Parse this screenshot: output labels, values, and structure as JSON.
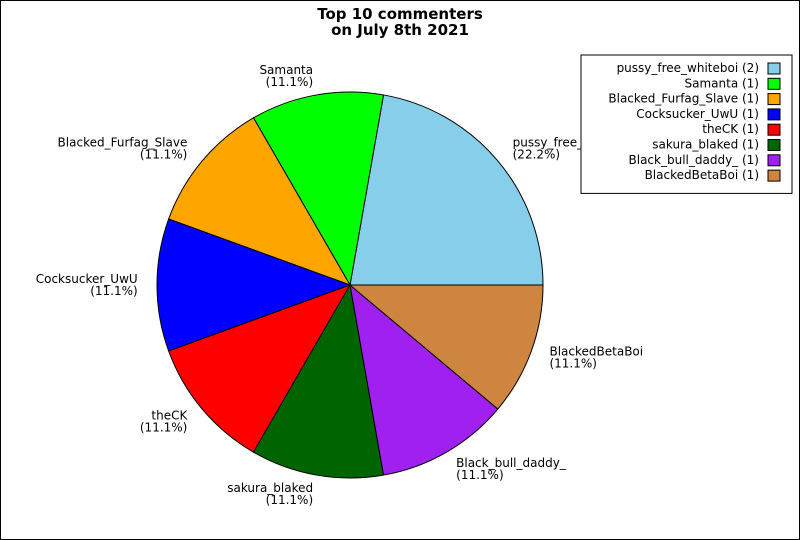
{
  "chart_data": {
    "type": "pie",
    "title": [
      "Top 10 commenters",
      "on July 8th 2021"
    ],
    "categories": [
      "pussy_free_whiteboi",
      "Samanta",
      "Blacked_Furfag_Slave",
      "Cocksucker_UwU",
      "theCK",
      "sakura_blaked",
      "Black_bull_daddy_",
      "BlackedBetaBoi"
    ],
    "values": [
      22.2,
      11.1,
      11.1,
      11.1,
      11.1,
      11.1,
      11.1,
      11.1
    ],
    "value_labels": [
      "(22.2%)",
      "(11.1%)",
      "(11.1%)",
      "(11.1%)",
      "(11.1%)",
      "(11.1%)",
      "(11.1%)",
      "(11.1%)"
    ],
    "colors": [
      "#87ceeb",
      "#00ff00",
      "#ffa500",
      "#0000ff",
      "#ff0000",
      "#006400",
      "#a020f0",
      "#cd853f"
    ],
    "legend_labels": [
      "pussy_free_whiteboi (2)",
      "Samanta (1)",
      "Blacked_Furfag_Slave (1)",
      "Cocksucker_UwU (1)",
      "theCK (1)",
      "sakura_blaked (1)",
      "Black_bull_daddy_ (1)",
      "BlackedBetaBoi (1)"
    ],
    "legend": "upper right"
  }
}
